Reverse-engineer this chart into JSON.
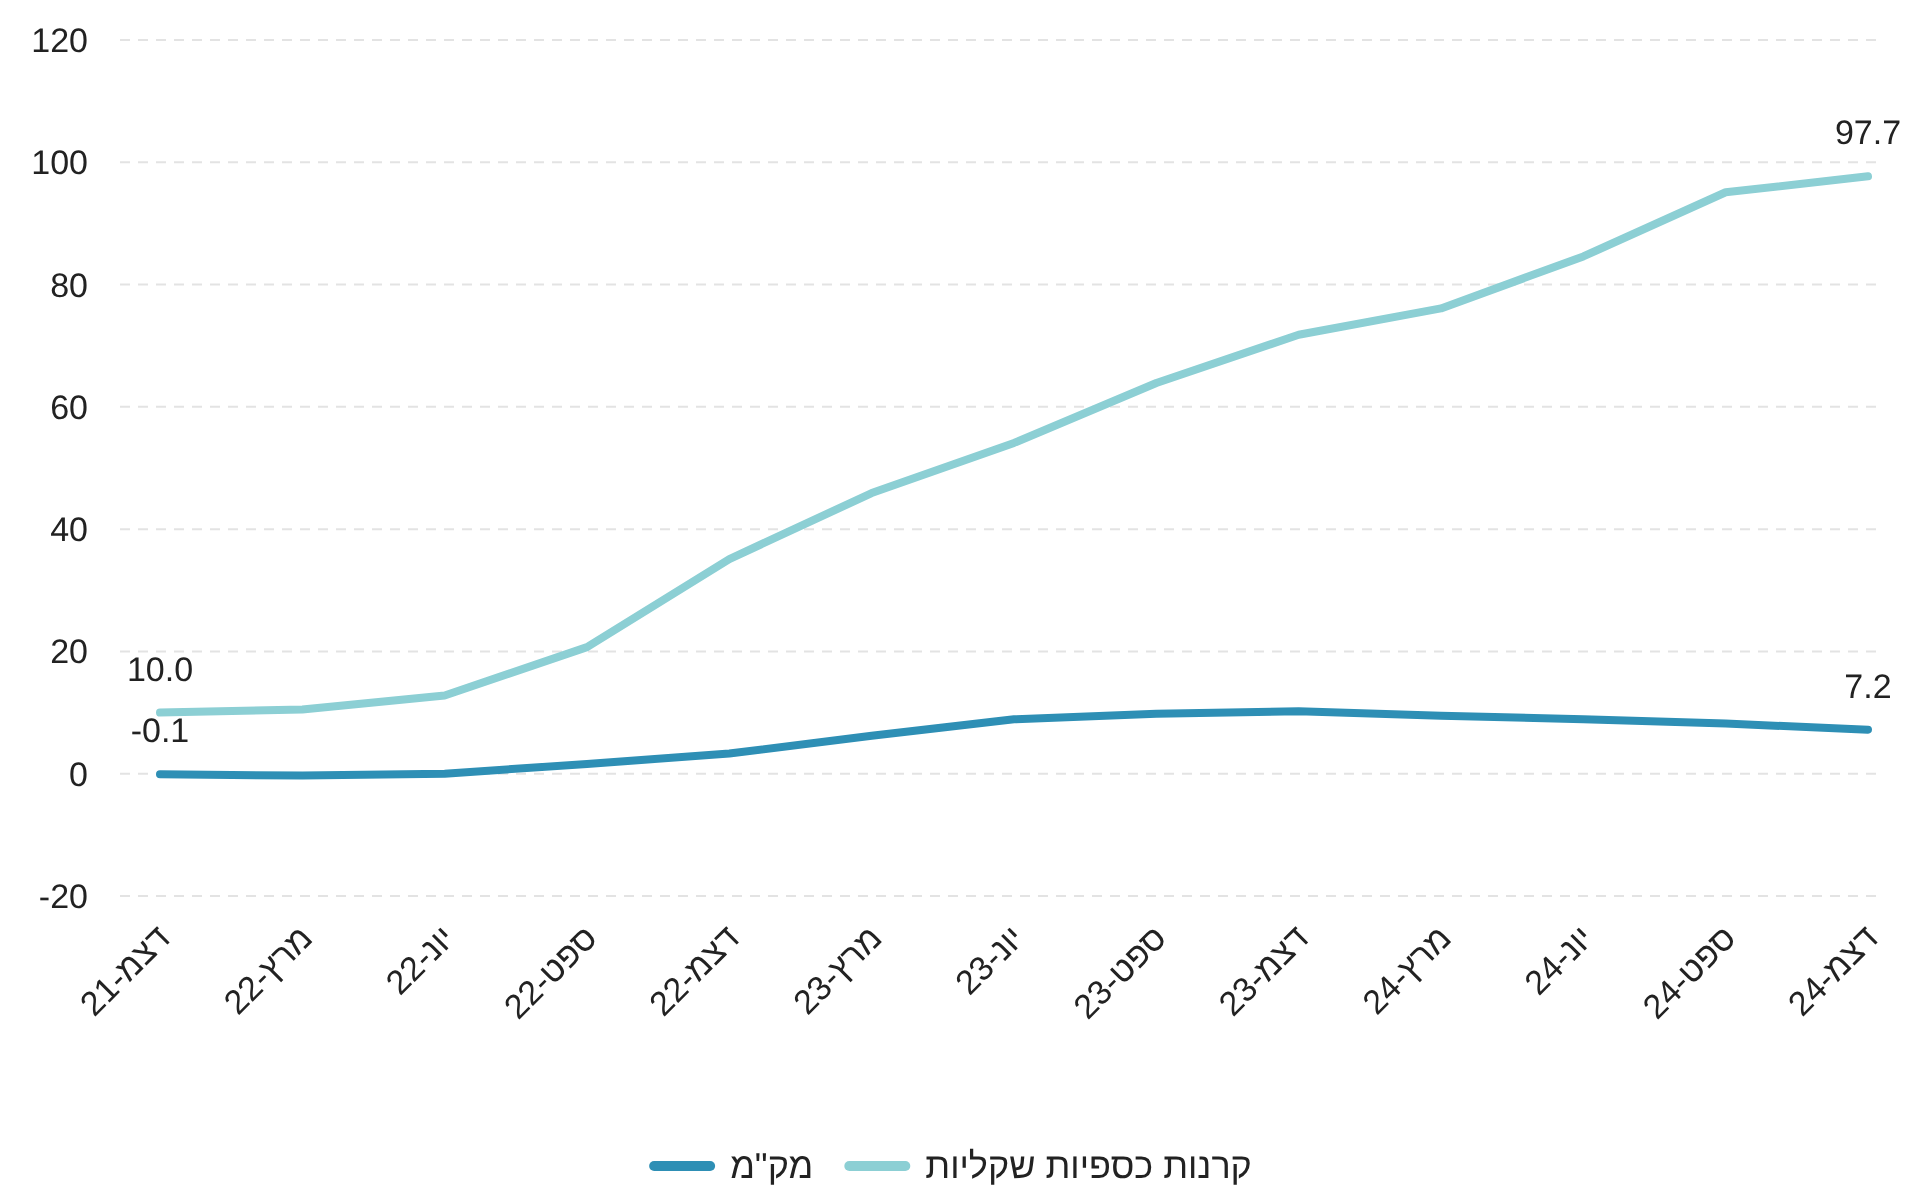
{
  "chart_data": {
    "type": "line",
    "categories": [
      "דצמ-21",
      "מרץ-22",
      "יונ-22",
      "ספט-22",
      "דצמ-22",
      "מרץ-23",
      "יונ-23",
      "ספט-23",
      "דצמ-23",
      "מרץ-24",
      "יונ-24",
      "ספט-24",
      "דצמ-24"
    ],
    "series": [
      {
        "name": "קרנות כספיות שקליות",
        "color": "#8ccfd4",
        "values": [
          10.0,
          10.5,
          12.8,
          20.7,
          35.1,
          45.9,
          54.1,
          63.9,
          71.8,
          76.1,
          84.6,
          95.1,
          97.7
        ],
        "value_labels": [
          "10.0",
          null,
          null,
          null,
          null,
          null,
          null,
          null,
          null,
          null,
          null,
          null,
          "97.7"
        ]
      },
      {
        "name": "מק\"מ",
        "color": "#2e8fb5",
        "values": [
          -0.1,
          -0.3,
          0.0,
          1.6,
          3.3,
          6.2,
          8.9,
          9.8,
          10.2,
          9.5,
          8.9,
          8.2,
          7.2
        ],
        "value_labels": [
          "-0.1",
          null,
          null,
          null,
          null,
          null,
          null,
          null,
          null,
          null,
          null,
          null,
          "7.2"
        ]
      }
    ],
    "ylim": [
      -20,
      120
    ],
    "yticks": [
      -20,
      0,
      20,
      40,
      60,
      80,
      100,
      120
    ],
    "grid": "y",
    "legend": "bottom",
    "marker": "none",
    "line_style": "solid"
  }
}
